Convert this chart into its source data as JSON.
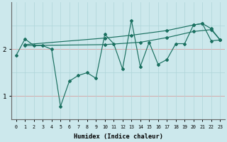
{
  "xlabel": "Humidex (Indice chaleur)",
  "bg_color": "#cce8ec",
  "line_color": "#1a7060",
  "grid_h_red": "#d4aaaa",
  "grid_v": "#aed4d8",
  "xlim": [
    -0.5,
    23.5
  ],
  "ylim": [
    0.5,
    3.0
  ],
  "yticks": [
    1,
    2
  ],
  "xticks": [
    0,
    1,
    2,
    3,
    4,
    5,
    6,
    7,
    8,
    9,
    10,
    11,
    12,
    13,
    14,
    15,
    16,
    17,
    18,
    19,
    20,
    21,
    22,
    23
  ],
  "series_main_x": [
    0,
    1,
    2,
    3,
    4,
    5,
    6,
    7,
    8,
    9,
    10,
    11,
    12,
    13,
    14,
    15,
    16,
    17,
    18,
    19,
    20,
    21,
    22,
    23
  ],
  "series_main_y": [
    1.87,
    2.22,
    2.08,
    2.08,
    2.0,
    0.78,
    1.32,
    1.44,
    1.5,
    1.38,
    2.32,
    2.12,
    1.58,
    2.62,
    1.63,
    2.15,
    1.68,
    1.78,
    2.12,
    2.12,
    2.52,
    2.55,
    2.18,
    2.2
  ],
  "series_upper_x": [
    1,
    10,
    13,
    17,
    20,
    21,
    22,
    23
  ],
  "series_upper_y": [
    2.1,
    2.24,
    2.3,
    2.4,
    2.52,
    2.55,
    2.44,
    2.2
  ],
  "series_lower_x": [
    1,
    10,
    14,
    17,
    20,
    22,
    23
  ],
  "series_lower_y": [
    2.08,
    2.1,
    2.15,
    2.25,
    2.38,
    2.42,
    2.2
  ]
}
